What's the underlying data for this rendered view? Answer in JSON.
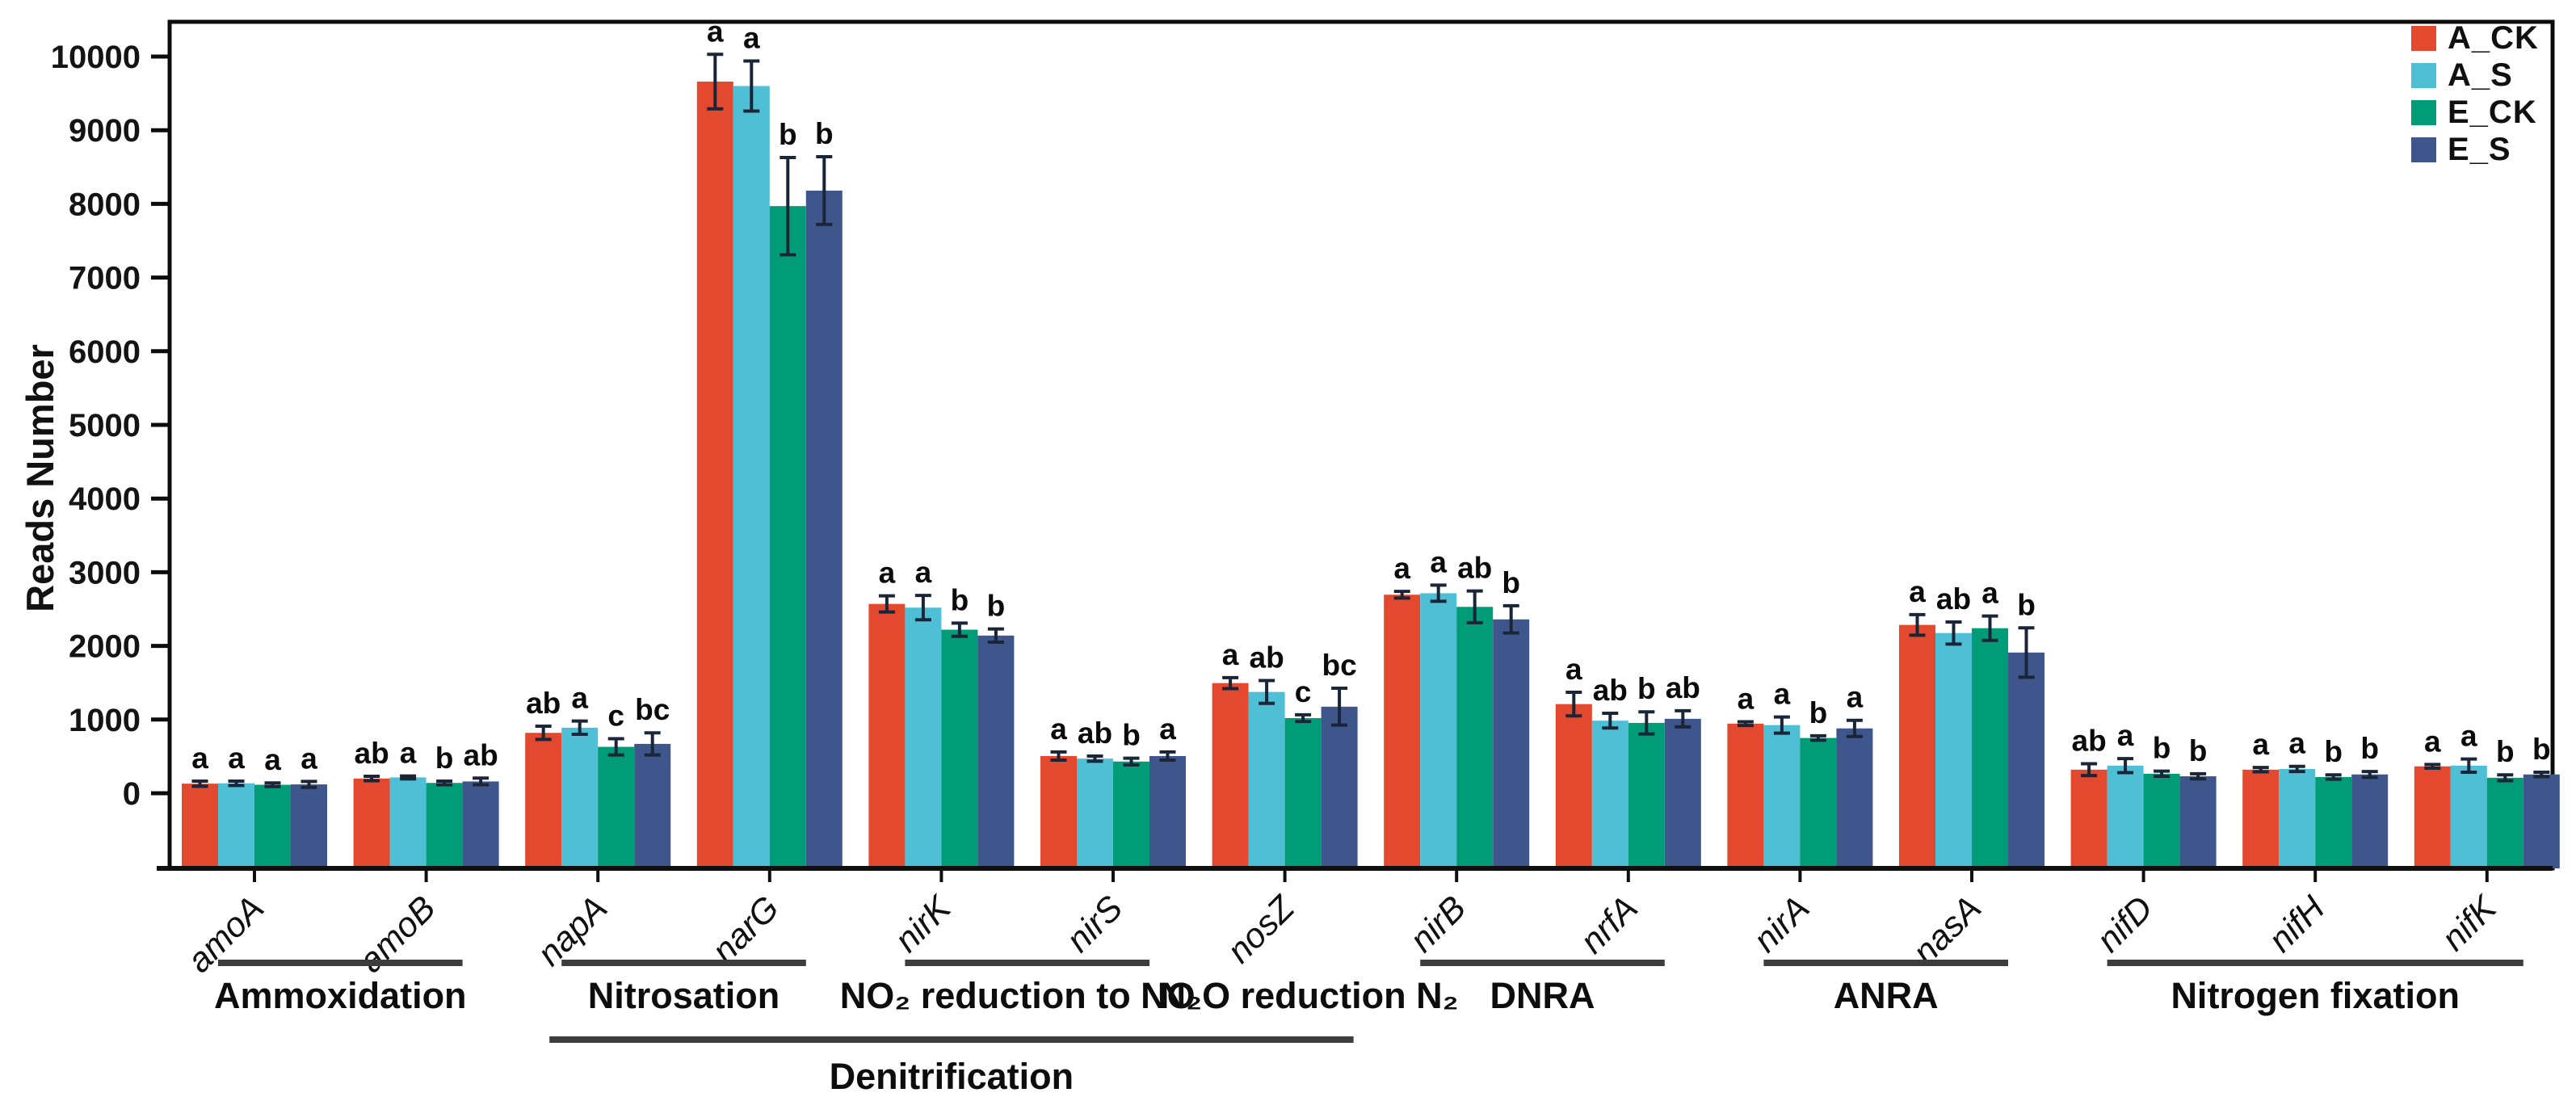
{
  "y_axis_title": "Reads Number",
  "legend": {
    "items": [
      {
        "label": "A_CK",
        "color": "#E2492F"
      },
      {
        "label": "A_S",
        "color": "#4FBFD6"
      },
      {
        "label": "E_CK",
        "color": "#009C78"
      },
      {
        "label": "E_S",
        "color": "#3F568C"
      }
    ]
  },
  "chart_data": {
    "type": "bar",
    "title": "",
    "xlabel": "",
    "ylabel": "Reads Number",
    "ylim": [
      -1000,
      10450
    ],
    "yticks": [
      0,
      1000,
      2000,
      3000,
      4000,
      5000,
      6000,
      7000,
      8000,
      9000,
      10000
    ],
    "grid": false,
    "legend_position": "top-right-inside",
    "bars_anchored_at_frame_bottom": true,
    "error_bar_color": "#1A2638",
    "categories": [
      "amoA",
      "amoB",
      "napA",
      "narG",
      "nirK",
      "nirS",
      "nosZ",
      "nirB",
      "nrfA",
      "nirA",
      "nasA",
      "nifD",
      "nifH",
      "nifK"
    ],
    "series": [
      {
        "name": "A_CK",
        "color": "#E2492F",
        "values": [
          130,
          200,
          820,
          9660,
          2570,
          505,
          1495,
          2695,
          1210,
          945,
          2285,
          320,
          320,
          365
        ],
        "errors": [
          35,
          30,
          90,
          370,
          110,
          55,
          75,
          45,
          160,
          25,
          140,
          80,
          30,
          25
        ]
      },
      {
        "name": "A_S",
        "color": "#4FBFD6",
        "values": [
          135,
          215,
          890,
          9600,
          2520,
          470,
          1375,
          2715,
          985,
          925,
          2175,
          375,
          330,
          375
        ],
        "errors": [
          30,
          20,
          90,
          340,
          165,
          35,
          155,
          110,
          100,
          110,
          150,
          95,
          35,
          90
        ]
      },
      {
        "name": "E_CK",
        "color": "#009C78",
        "values": [
          115,
          140,
          630,
          7970,
          2220,
          430,
          1020,
          2530,
          955,
          750,
          2240,
          265,
          220,
          210
        ],
        "errors": [
          25,
          25,
          110,
          660,
          90,
          45,
          45,
          215,
          150,
          30,
          165,
          35,
          30,
          40
        ]
      },
      {
        "name": "E_S",
        "color": "#3F568C",
        "values": [
          120,
          160,
          670,
          8180,
          2140,
          505,
          1175,
          2360,
          1010,
          880,
          1910,
          230,
          255,
          255
        ],
        "errors": [
          40,
          45,
          150,
          460,
          90,
          55,
          250,
          185,
          110,
          110,
          335,
          35,
          40,
          30
        ]
      }
    ],
    "sig_letters": {
      "amoA": [
        "a",
        "a",
        "a",
        "a"
      ],
      "amoB": [
        "ab",
        "a",
        "b",
        "ab"
      ],
      "napA": [
        "ab",
        "a",
        "c",
        "bc"
      ],
      "narG": [
        "a",
        "a",
        "b",
        "b"
      ],
      "nirK": [
        "a",
        "a",
        "b",
        "b"
      ],
      "nirS": [
        "a",
        "ab",
        "b",
        "a"
      ],
      "nosZ": [
        "a",
        "ab",
        "c",
        "bc"
      ],
      "nirB": [
        "a",
        "a",
        "ab",
        "b"
      ],
      "nrfA": [
        "a",
        "ab",
        "b",
        "ab"
      ],
      "nirA": [
        "a",
        "a",
        "b",
        "a"
      ],
      "nasA": [
        "a",
        "ab",
        "a",
        "b"
      ],
      "nifD": [
        "ab",
        "a",
        "b",
        "b"
      ],
      "nifH": [
        "a",
        "a",
        "b",
        "b"
      ],
      "nifK": [
        "a",
        "a",
        "b",
        "b"
      ]
    },
    "groups": [
      {
        "label": "Ammoxidation",
        "from": "amoA",
        "to": "amoB",
        "underline": true,
        "row": 1
      },
      {
        "label": "Nitrosation",
        "from": "napA",
        "to": "narG",
        "underline": true,
        "row": 1
      },
      {
        "label": "NO₂ reduction to NO",
        "from": "nirK",
        "to": "nirS",
        "underline": true,
        "row": 1
      },
      {
        "label": "N₂O reduction N₂",
        "from": "nosZ",
        "to": "nosZ",
        "underline": false,
        "row": 1
      },
      {
        "label": "DNRA",
        "from": "nirB",
        "to": "nrfA",
        "underline": true,
        "row": 1
      },
      {
        "label": "ANRA",
        "from": "nirA",
        "to": "nasA",
        "underline": true,
        "row": 1
      },
      {
        "label": "Nitrogen fixation",
        "from": "nifD",
        "to": "nifK",
        "underline": true,
        "row": 1
      },
      {
        "label": "Denitrification",
        "from": "napA",
        "to": "nosZ",
        "underline": true,
        "row": 2
      }
    ]
  }
}
